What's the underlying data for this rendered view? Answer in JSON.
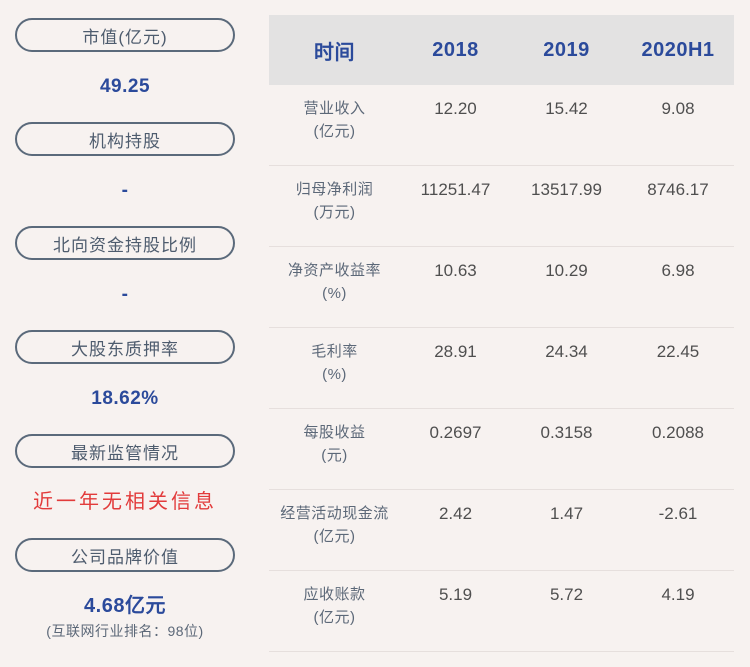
{
  "colors": {
    "page_background": "#f7f2f0",
    "accent_blue": "#2b4a9b",
    "alert_red": "#e23b3b",
    "slate_text": "#5c6878",
    "pill_border": "#5b6a7b",
    "table_header_background": "#e3e2e2",
    "table_value_text": "#4f4f4f",
    "row_divider": "#e6dfdd"
  },
  "sidebar": {
    "items": [
      {
        "label": "市值(亿元)",
        "value": "49.25"
      },
      {
        "label": "机构持股",
        "value": "-"
      },
      {
        "label": "北向资金持股比例",
        "value": "-"
      },
      {
        "label": "大股东质押率",
        "value": "18.62%"
      },
      {
        "label": "最新监管情况",
        "value": "近一年无相关信息"
      },
      {
        "label": "公司品牌价值",
        "value": "4.68亿元",
        "subvalue": "(互联网行业排名：98位)"
      }
    ]
  },
  "table": {
    "header": {
      "time_label": "时间",
      "columns": [
        "2018",
        "2019",
        "2020H1"
      ]
    },
    "rows": [
      {
        "name": "营业收入",
        "unit": "(亿元)",
        "values": [
          "12.20",
          "15.42",
          "9.08"
        ]
      },
      {
        "name": "归母净利润",
        "unit": "(万元)",
        "values": [
          "11251.47",
          "13517.99",
          "8746.17"
        ]
      },
      {
        "name": "净资产收益率",
        "unit": "(%)",
        "values": [
          "10.63",
          "10.29",
          "6.98"
        ]
      },
      {
        "name": "毛利率",
        "unit": "(%)",
        "values": [
          "28.91",
          "24.34",
          "22.45"
        ]
      },
      {
        "name": "每股收益",
        "unit": "(元)",
        "values": [
          "0.2697",
          "0.3158",
          "0.2088"
        ]
      },
      {
        "name": "经营活动现金流",
        "unit": "(亿元)",
        "values": [
          "2.42",
          "1.47",
          "-2.61"
        ]
      },
      {
        "name": "应收账款",
        "unit": "(亿元)",
        "values": [
          "5.19",
          "5.72",
          "4.19"
        ]
      }
    ]
  }
}
